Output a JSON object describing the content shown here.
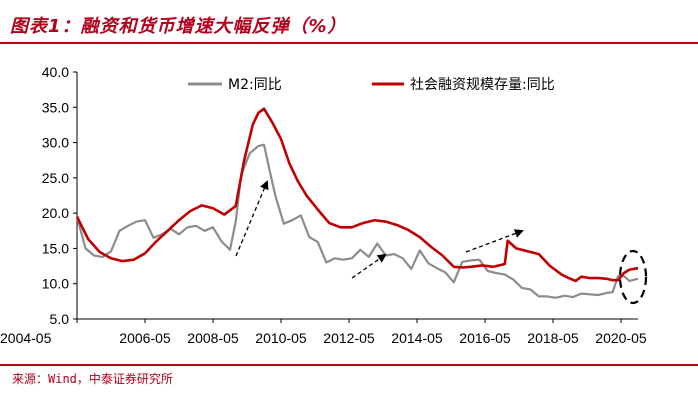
{
  "title": "图表1：融资和货币增速大幅反弹（%）",
  "source": "来源：Wind，中泰证券研究所",
  "colors": {
    "m2": "#8c8c8c",
    "tsf": "#c00000",
    "accent": "#b3001b"
  },
  "chart_data": {
    "type": "line",
    "title": "图表1：融资和货币增速大幅反弹（%）",
    "xlabel": "",
    "ylabel": "",
    "ylim": [
      5.0,
      40.0
    ],
    "yticks": [
      "5.0",
      "10.0",
      "15.0",
      "20.0",
      "25.0",
      "30.0",
      "35.0",
      "40.0"
    ],
    "xticks": [
      "2004-05",
      "2006-05",
      "2008-05",
      "2010-05",
      "2012-05",
      "2014-05",
      "2016-05",
      "2018-05",
      "2020-05"
    ],
    "xlim": [
      "2004-05",
      "2020-11"
    ],
    "grid": false,
    "legend_position": "top",
    "series": [
      {
        "name": "M2:同比",
        "color": "#8c8c8c",
        "points": [
          [
            "2004-05",
            19.5
          ],
          [
            "2004-08",
            15.0
          ],
          [
            "2004-11",
            14.0
          ],
          [
            "2005-02",
            13.8
          ],
          [
            "2005-05",
            14.6
          ],
          [
            "2005-08",
            17.5
          ],
          [
            "2005-11",
            18.2
          ],
          [
            "2006-02",
            18.8
          ],
          [
            "2006-05",
            19.0
          ],
          [
            "2006-08",
            16.5
          ],
          [
            "2006-11",
            17.0
          ],
          [
            "2007-02",
            17.8
          ],
          [
            "2007-05",
            17.0
          ],
          [
            "2007-08",
            18.0
          ],
          [
            "2007-11",
            18.2
          ],
          [
            "2008-02",
            17.5
          ],
          [
            "2008-05",
            18.0
          ],
          [
            "2008-08",
            16.0
          ],
          [
            "2008-11",
            14.8
          ],
          [
            "2009-01",
            18.8
          ],
          [
            "2009-03",
            25.5
          ],
          [
            "2009-06",
            28.5
          ],
          [
            "2009-09",
            29.5
          ],
          [
            "2009-11",
            29.7
          ],
          [
            "2010-01",
            26.0
          ],
          [
            "2010-03",
            22.5
          ],
          [
            "2010-06",
            18.5
          ],
          [
            "2010-09",
            19.0
          ],
          [
            "2010-12",
            19.7
          ],
          [
            "2011-03",
            16.6
          ],
          [
            "2011-06",
            15.9
          ],
          [
            "2011-09",
            13.0
          ],
          [
            "2011-12",
            13.6
          ],
          [
            "2012-03",
            13.4
          ],
          [
            "2012-06",
            13.6
          ],
          [
            "2012-09",
            14.8
          ],
          [
            "2012-12",
            13.8
          ],
          [
            "2013-03",
            15.7
          ],
          [
            "2013-06",
            14.0
          ],
          [
            "2013-09",
            14.2
          ],
          [
            "2013-12",
            13.6
          ],
          [
            "2014-03",
            12.1
          ],
          [
            "2014-06",
            14.7
          ],
          [
            "2014-09",
            12.9
          ],
          [
            "2014-12",
            12.2
          ],
          [
            "2015-03",
            11.6
          ],
          [
            "2015-06",
            10.2
          ],
          [
            "2015-09",
            13.1
          ],
          [
            "2015-12",
            13.3
          ],
          [
            "2016-03",
            13.4
          ],
          [
            "2016-06",
            11.8
          ],
          [
            "2016-09",
            11.5
          ],
          [
            "2016-12",
            11.3
          ],
          [
            "2017-03",
            10.6
          ],
          [
            "2017-06",
            9.4
          ],
          [
            "2017-09",
            9.2
          ],
          [
            "2017-12",
            8.2
          ],
          [
            "2018-03",
            8.2
          ],
          [
            "2018-06",
            8.0
          ],
          [
            "2018-09",
            8.3
          ],
          [
            "2018-12",
            8.1
          ],
          [
            "2019-03",
            8.6
          ],
          [
            "2019-06",
            8.5
          ],
          [
            "2019-09",
            8.4
          ],
          [
            "2019-12",
            8.7
          ],
          [
            "2020-02",
            8.8
          ],
          [
            "2020-04",
            11.1
          ],
          [
            "2020-06",
            11.1
          ],
          [
            "2020-08",
            10.4
          ],
          [
            "2020-11",
            10.7
          ]
        ]
      },
      {
        "name": "社会融资规模存量:同比",
        "color": "#c00000",
        "points": [
          [
            "2004-05",
            19.5
          ],
          [
            "2004-09",
            16.3
          ],
          [
            "2005-01",
            14.5
          ],
          [
            "2005-05",
            13.6
          ],
          [
            "2005-09",
            13.2
          ],
          [
            "2006-01",
            13.4
          ],
          [
            "2006-05",
            14.3
          ],
          [
            "2006-09",
            16.0
          ],
          [
            "2007-01",
            17.5
          ],
          [
            "2007-05",
            19.0
          ],
          [
            "2007-09",
            20.3
          ],
          [
            "2008-01",
            21.1
          ],
          [
            "2008-05",
            20.7
          ],
          [
            "2008-09",
            19.8
          ],
          [
            "2009-01",
            21.0
          ],
          [
            "2009-04",
            27.5
          ],
          [
            "2009-07",
            32.5
          ],
          [
            "2009-09",
            34.2
          ],
          [
            "2009-11",
            34.8
          ],
          [
            "2010-02",
            32.8
          ],
          [
            "2010-05",
            30.5
          ],
          [
            "2010-08",
            27.0
          ],
          [
            "2010-11",
            24.5
          ],
          [
            "2011-02",
            22.5
          ],
          [
            "2011-06",
            20.5
          ],
          [
            "2011-10",
            18.6
          ],
          [
            "2012-02",
            18.0
          ],
          [
            "2012-06",
            18.0
          ],
          [
            "2012-10",
            18.6
          ],
          [
            "2013-02",
            19.0
          ],
          [
            "2013-06",
            18.8
          ],
          [
            "2013-10",
            18.3
          ],
          [
            "2014-02",
            17.6
          ],
          [
            "2014-06",
            16.6
          ],
          [
            "2014-10",
            15.2
          ],
          [
            "2015-02",
            14.0
          ],
          [
            "2015-06",
            12.4
          ],
          [
            "2015-09",
            12.3
          ],
          [
            "2015-12",
            12.4
          ],
          [
            "2016-04",
            12.6
          ],
          [
            "2016-08",
            12.4
          ],
          [
            "2016-12",
            12.8
          ],
          [
            "2017-01",
            16.1
          ],
          [
            "2017-04",
            15.0
          ],
          [
            "2017-08",
            14.6
          ],
          [
            "2017-12",
            14.2
          ],
          [
            "2018-04",
            12.5
          ],
          [
            "2018-08",
            11.3
          ],
          [
            "2018-10",
            10.9
          ],
          [
            "2019-01",
            10.4
          ],
          [
            "2019-03",
            11.0
          ],
          [
            "2019-06",
            10.8
          ],
          [
            "2019-09",
            10.8
          ],
          [
            "2019-12",
            10.7
          ],
          [
            "2020-02",
            10.5
          ],
          [
            "2020-04",
            10.5
          ],
          [
            "2020-06",
            11.5
          ],
          [
            "2020-08",
            12.0
          ],
          [
            "2020-11",
            12.2
          ]
        ]
      }
    ]
  }
}
